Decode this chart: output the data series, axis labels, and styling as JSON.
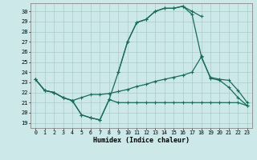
{
  "xlabel": "Humidex (Indice chaleur)",
  "xlim": [
    -0.5,
    23.5
  ],
  "ylim": [
    18.5,
    30.8
  ],
  "yticks": [
    19,
    20,
    21,
    22,
    23,
    24,
    25,
    26,
    27,
    28,
    29,
    30
  ],
  "xticks": [
    0,
    1,
    2,
    3,
    4,
    5,
    6,
    7,
    8,
    9,
    10,
    11,
    12,
    13,
    14,
    15,
    16,
    17,
    18,
    19,
    20,
    21,
    22,
    23
  ],
  "background_color": "#cce8e8",
  "grid_color": "#aacccc",
  "line_color": "#1a6b5a",
  "line_dip_flat": [
    23.3,
    22.2,
    22.0,
    21.5,
    21.2,
    19.8,
    19.5,
    19.3,
    21.3,
    21.0,
    21.0,
    21.0,
    21.0,
    21.0,
    21.0,
    21.0,
    21.0,
    21.0,
    21.0,
    21.0,
    21.0,
    21.0,
    21.0,
    20.7
  ],
  "line_peak_full": [
    23.3,
    22.2,
    22.0,
    21.5,
    21.2,
    19.8,
    19.5,
    19.3,
    21.3,
    24.0,
    27.0,
    28.9,
    29.2,
    30.0,
    30.3,
    30.3,
    30.5,
    29.7,
    25.6,
    23.4,
    23.2,
    22.5,
    21.5,
    20.7
  ],
  "line_peak_partial": [
    null,
    null,
    null,
    null,
    null,
    null,
    null,
    null,
    null,
    24.0,
    27.0,
    28.9,
    29.2,
    30.0,
    30.3,
    30.3,
    30.5,
    30.0,
    29.5,
    null,
    null,
    null,
    null,
    null
  ],
  "line_diagonal": [
    23.3,
    22.2,
    22.0,
    21.5,
    21.2,
    21.5,
    21.8,
    21.8,
    21.9,
    22.1,
    22.3,
    22.6,
    22.8,
    23.1,
    23.3,
    23.5,
    23.7,
    24.0,
    25.5,
    23.5,
    23.3,
    23.2,
    22.2,
    21.0
  ]
}
